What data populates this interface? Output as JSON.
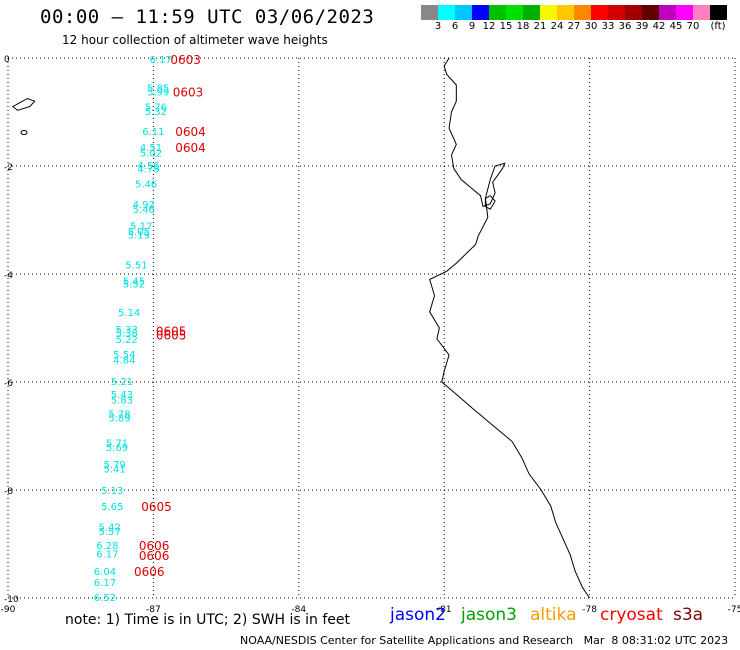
{
  "header": {
    "title": "00:00 – 11:59 UTC 03/06/2023",
    "subtitle": "12 hour collection of altimeter wave heights"
  },
  "colorbar": {
    "colors": [
      "#888888",
      "#00ffff",
      "#00c8ff",
      "#0000ff",
      "#00c000",
      "#00e000",
      "#00b000",
      "#f8f800",
      "#ffc800",
      "#ff8800",
      "#ff0000",
      "#d00000",
      "#a00000",
      "#600000",
      "#c000c0",
      "#ff00ff",
      "#ff80c0",
      "#000000"
    ],
    "labels": [
      "3",
      "6",
      "9",
      "12",
      "15",
      "18",
      "21",
      "24",
      "27",
      "30",
      "33",
      "36",
      "39",
      "42",
      "45",
      "70",
      "(ft)"
    ]
  },
  "map": {
    "lat_ticks": [
      "0",
      "-2",
      "-4",
      "-6",
      "-8",
      "-10"
    ],
    "lon_ticks": [
      "-90",
      "-87",
      "-84",
      "-81",
      "-78",
      "-75"
    ],
    "extent": {
      "lon": [
        -90,
        -75
      ],
      "lat": [
        -10,
        0
      ]
    },
    "wave_heights": [
      {
        "lon": -86.85,
        "lat": -0.02,
        "value": "6.17"
      },
      {
        "lon": -86.9,
        "lat": -0.55,
        "value": "5.85"
      },
      {
        "lon": -86.9,
        "lat": -0.62,
        "value": "5.99"
      },
      {
        "lon": -86.95,
        "lat": -0.9,
        "value": "5.76"
      },
      {
        "lon": -86.95,
        "lat": -0.98,
        "value": "5.32"
      },
      {
        "lon": -87.0,
        "lat": -1.35,
        "value": "6.11"
      },
      {
        "lon": -87.05,
        "lat": -1.65,
        "value": "4.51"
      },
      {
        "lon": -87.05,
        "lat": -1.75,
        "value": "5.02"
      },
      {
        "lon": -87.1,
        "lat": -1.98,
        "value": "4.56"
      },
      {
        "lon": -87.1,
        "lat": -2.05,
        "value": "4.79"
      },
      {
        "lon": -87.15,
        "lat": -2.32,
        "value": "5.46"
      },
      {
        "lon": -87.2,
        "lat": -2.7,
        "value": "4.92"
      },
      {
        "lon": -87.2,
        "lat": -2.8,
        "value": "5.46"
      },
      {
        "lon": -87.25,
        "lat": -3.1,
        "value": "5.17"
      },
      {
        "lon": -87.3,
        "lat": -3.2,
        "value": "5.05"
      },
      {
        "lon": -87.3,
        "lat": -3.27,
        "value": "5.19"
      },
      {
        "lon": -87.35,
        "lat": -3.82,
        "value": "5.51"
      },
      {
        "lon": -87.4,
        "lat": -4.12,
        "value": "5.45"
      },
      {
        "lon": -87.4,
        "lat": -4.18,
        "value": "5.52"
      },
      {
        "lon": -87.5,
        "lat": -4.7,
        "value": "5.14"
      },
      {
        "lon": -87.55,
        "lat": -5.02,
        "value": "5.33"
      },
      {
        "lon": -87.55,
        "lat": -5.08,
        "value": "5.38"
      },
      {
        "lon": -87.55,
        "lat": -5.2,
        "value": "5.22"
      },
      {
        "lon": -87.6,
        "lat": -5.48,
        "value": "5.54"
      },
      {
        "lon": -87.6,
        "lat": -5.58,
        "value": "4.84"
      },
      {
        "lon": -87.65,
        "lat": -5.98,
        "value": "5.21"
      },
      {
        "lon": -87.65,
        "lat": -6.22,
        "value": "5.43"
      },
      {
        "lon": -87.65,
        "lat": -6.32,
        "value": "5.83"
      },
      {
        "lon": -87.7,
        "lat": -6.58,
        "value": "5.78"
      },
      {
        "lon": -87.7,
        "lat": -6.66,
        "value": "5.89"
      },
      {
        "lon": -87.75,
        "lat": -7.12,
        "value": "5.71"
      },
      {
        "lon": -87.75,
        "lat": -7.2,
        "value": "5.69"
      },
      {
        "lon": -87.8,
        "lat": -7.52,
        "value": "5.79"
      },
      {
        "lon": -87.8,
        "lat": -7.6,
        "value": "5.41"
      },
      {
        "lon": -87.85,
        "lat": -8.0,
        "value": "5.13"
      },
      {
        "lon": -87.85,
        "lat": -8.3,
        "value": "5.65"
      },
      {
        "lon": -87.9,
        "lat": -8.68,
        "value": "5.42"
      },
      {
        "lon": -87.9,
        "lat": -8.76,
        "value": "5.57"
      },
      {
        "lon": -87.95,
        "lat": -9.02,
        "value": "6.28"
      },
      {
        "lon": -87.95,
        "lat": -9.18,
        "value": "6.17"
      },
      {
        "lon": -88.0,
        "lat": -9.5,
        "value": "6.04"
      },
      {
        "lon": -88.0,
        "lat": -9.7,
        "value": "6.17"
      },
      {
        "lon": -88.0,
        "lat": -9.98,
        "value": "6.52"
      }
    ],
    "time_labels": [
      {
        "lon": -86.65,
        "lat": -0.02,
        "value": "0603"
      },
      {
        "lon": -86.6,
        "lat": -0.62,
        "value": "0603"
      },
      {
        "lon": -86.55,
        "lat": -1.35,
        "value": "0604"
      },
      {
        "lon": -86.55,
        "lat": -1.65,
        "value": "0604"
      },
      {
        "lon": -86.95,
        "lat": -5.05,
        "value": "0605"
      },
      {
        "lon": -86.95,
        "lat": -5.12,
        "value": "0605"
      },
      {
        "lon": -87.25,
        "lat": -8.3,
        "value": "0605"
      },
      {
        "lon": -87.3,
        "lat": -9.02,
        "value": "0606"
      },
      {
        "lon": -87.3,
        "lat": -9.2,
        "value": "0606"
      },
      {
        "lon": -87.4,
        "lat": -9.5,
        "value": "0606"
      }
    ],
    "colors": {
      "wave_text": "#00e0e0",
      "time_text": "#e00000",
      "coast": "#000000",
      "grid": "#000000"
    }
  },
  "footer": {
    "note": "note: 1) Time is in UTC; 2) SWH is in feet",
    "legend": [
      {
        "label": "jason2",
        "color": "#0000ff"
      },
      {
        "label": "jason3",
        "color": "#00a000"
      },
      {
        "label": "altika",
        "color": "#ff9900"
      },
      {
        "label": "cryosat",
        "color": "#ff0000"
      },
      {
        "label": "s3a",
        "color": "#800000"
      }
    ],
    "credit": "NOAA/NESDIS Center for Satellite Applications and Research   Mar  8 08:31:02 UTC 2023"
  }
}
